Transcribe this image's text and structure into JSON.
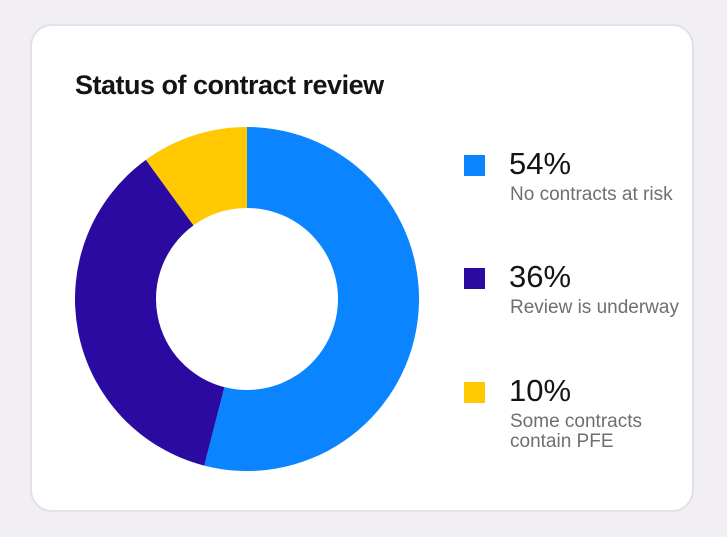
{
  "chart_data": {
    "type": "pie",
    "donut": true,
    "title": "Status of contract review",
    "legend_position": "right",
    "series": [
      {
        "value": 54,
        "percent_label": "54%",
        "label": "No contracts at risk",
        "color": "#0a84ff"
      },
      {
        "value": 36,
        "percent_label": "36%",
        "label": "Review is underway",
        "color": "#2a0aa0"
      },
      {
        "value": 10,
        "percent_label": "10%",
        "label": "Some contracts contain PFE",
        "color": "#ffc800"
      }
    ]
  }
}
